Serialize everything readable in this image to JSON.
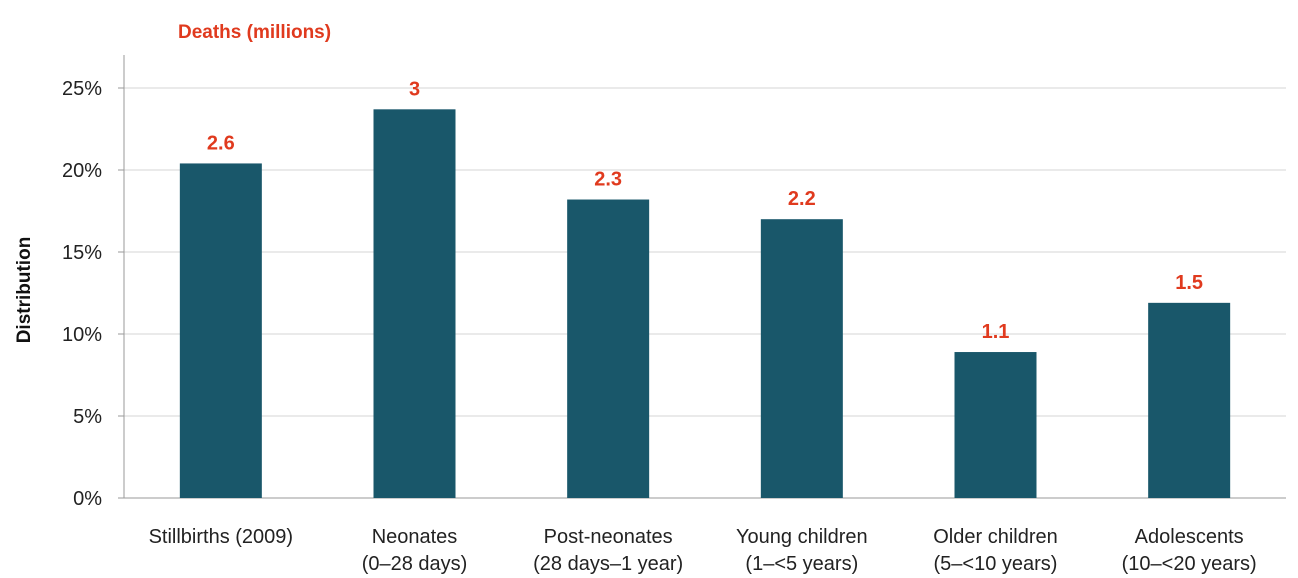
{
  "chart_data": {
    "type": "bar",
    "subtitle": "Deaths (millions)",
    "ylabel": "Distribution",
    "xlabel": "",
    "ylim": [
      0,
      25
    ],
    "y_ticks": [
      0,
      5,
      10,
      15,
      20,
      25
    ],
    "y_tick_labels": [
      "0%",
      "5%",
      "10%",
      "15%",
      "20%",
      "25%"
    ],
    "categories": [
      [
        "Stillbirths (2009)"
      ],
      [
        "Neonates",
        "(0–28 days)"
      ],
      [
        "Post-neonates",
        "(28 days–1 year)"
      ],
      [
        "Young children",
        "(1–<5 years)"
      ],
      [
        "Older children",
        "(5–<10 years)"
      ],
      [
        "Adolescents",
        "(10–<20 years)"
      ]
    ],
    "values": [
      20.4,
      23.7,
      18.2,
      17.0,
      8.9,
      11.9
    ],
    "data_labels": [
      "2.6",
      "3",
      "2.3",
      "2.2",
      "1.1",
      "1.5"
    ],
    "grid": "horizontal",
    "colors": {
      "bar": "#19576a",
      "data_label": "#e03a1e",
      "grid": "#d4d4d4",
      "axis": "#9a9a9a"
    }
  }
}
